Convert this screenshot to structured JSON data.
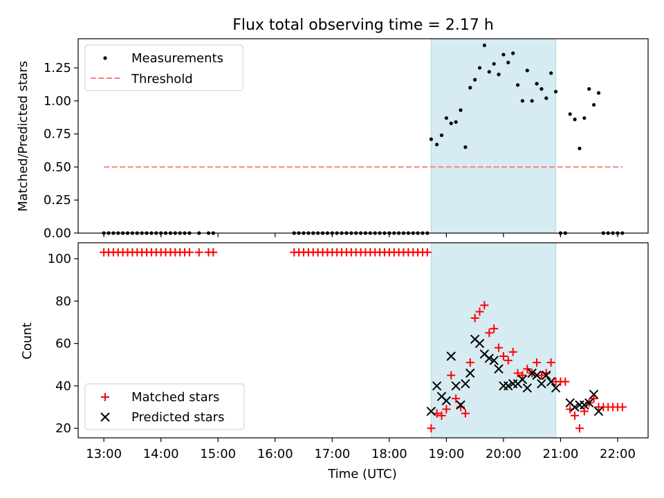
{
  "chart_data": [
    {
      "type": "scatter",
      "title": "Flux total observing time = 2.17 h",
      "xlabel": "",
      "ylabel": "Matched/Predicted stars",
      "xlim": [
        "12:33",
        "22:32"
      ],
      "ylim": [
        0,
        1.47
      ],
      "yticks": [
        0.0,
        0.25,
        0.5,
        0.75,
        1.0,
        1.25
      ],
      "ytick_labels": [
        "0.00",
        "0.25",
        "0.50",
        "0.75",
        "1.00",
        "1.25"
      ],
      "legend_position": "upper left",
      "highlight_span": {
        "start": "18:44",
        "end": "20:55",
        "color": "#add8e6"
      },
      "series": [
        {
          "name": "Measurements",
          "marker": "dot",
          "color": "#000000",
          "points": [
            [
              "13:00",
              0
            ],
            [
              "13:05",
              0
            ],
            [
              "13:10",
              0
            ],
            [
              "13:15",
              0
            ],
            [
              "13:20",
              0
            ],
            [
              "13:25",
              0
            ],
            [
              "13:30",
              0
            ],
            [
              "13:35",
              0
            ],
            [
              "13:40",
              0
            ],
            [
              "13:45",
              0
            ],
            [
              "13:50",
              0
            ],
            [
              "13:55",
              0
            ],
            [
              "14:00",
              0
            ],
            [
              "14:05",
              0
            ],
            [
              "14:10",
              0
            ],
            [
              "14:15",
              0
            ],
            [
              "14:20",
              0
            ],
            [
              "14:25",
              0
            ],
            [
              "14:30",
              0
            ],
            [
              "14:40",
              0
            ],
            [
              "14:50",
              0
            ],
            [
              "14:55",
              0
            ],
            [
              "16:20",
              0
            ],
            [
              "16:25",
              0
            ],
            [
              "16:30",
              0
            ],
            [
              "16:35",
              0
            ],
            [
              "16:40",
              0
            ],
            [
              "16:45",
              0
            ],
            [
              "16:50",
              0
            ],
            [
              "16:55",
              0
            ],
            [
              "17:00",
              0
            ],
            [
              "17:05",
              0
            ],
            [
              "17:10",
              0
            ],
            [
              "17:15",
              0
            ],
            [
              "17:20",
              0
            ],
            [
              "17:25",
              0
            ],
            [
              "17:30",
              0
            ],
            [
              "17:35",
              0
            ],
            [
              "17:40",
              0
            ],
            [
              "17:45",
              0
            ],
            [
              "17:50",
              0
            ],
            [
              "17:55",
              0
            ],
            [
              "18:00",
              0
            ],
            [
              "18:05",
              0
            ],
            [
              "18:10",
              0
            ],
            [
              "18:15",
              0
            ],
            [
              "18:20",
              0
            ],
            [
              "18:25",
              0
            ],
            [
              "18:30",
              0
            ],
            [
              "18:35",
              0
            ],
            [
              "18:40",
              0
            ],
            [
              "18:44",
              0.71
            ],
            [
              "18:50",
              0.67
            ],
            [
              "18:55",
              0.74
            ],
            [
              "19:00",
              0.87
            ],
            [
              "19:05",
              0.83
            ],
            [
              "19:10",
              0.84
            ],
            [
              "19:15",
              0.93
            ],
            [
              "19:20",
              0.65
            ],
            [
              "19:25",
              1.1
            ],
            [
              "19:30",
              1.16
            ],
            [
              "19:35",
              1.25
            ],
            [
              "19:40",
              1.42
            ],
            [
              "19:45",
              1.22
            ],
            [
              "19:50",
              1.28
            ],
            [
              "19:55",
              1.2
            ],
            [
              "20:00",
              1.35
            ],
            [
              "20:05",
              1.29
            ],
            [
              "20:10",
              1.36
            ],
            [
              "20:15",
              1.12
            ],
            [
              "20:20",
              1.0
            ],
            [
              "20:25",
              1.23
            ],
            [
              "20:30",
              1.0
            ],
            [
              "20:35",
              1.13
            ],
            [
              "20:40",
              1.09
            ],
            [
              "20:45",
              1.02
            ],
            [
              "20:50",
              1.21
            ],
            [
              "20:55",
              1.07
            ],
            [
              "21:00",
              0
            ],
            [
              "21:05",
              0
            ],
            [
              "21:10",
              0.9
            ],
            [
              "21:15",
              0.86
            ],
            [
              "21:20",
              0.64
            ],
            [
              "21:25",
              0.87
            ],
            [
              "21:30",
              1.09
            ],
            [
              "21:35",
              0.97
            ],
            [
              "21:40",
              1.06
            ],
            [
              "21:45",
              0
            ],
            [
              "21:50",
              0
            ],
            [
              "21:55",
              0
            ],
            [
              "22:00",
              0
            ],
            [
              "22:05",
              0
            ]
          ]
        },
        {
          "name": "Threshold",
          "style": "dashed line",
          "color": "#ff7f7f",
          "points": [
            [
              "13:00",
              0.5
            ],
            [
              "22:05",
              0.5
            ]
          ]
        }
      ]
    },
    {
      "type": "scatter",
      "title": "",
      "xlabel": "Time (UTC)",
      "ylabel": "Count",
      "xlim": [
        "12:33",
        "22:32"
      ],
      "ylim": [
        15.5,
        107.5
      ],
      "yticks": [
        20,
        40,
        60,
        80,
        100
      ],
      "ytick_labels": [
        "20",
        "40",
        "60",
        "80",
        "100"
      ],
      "xticks": [
        "13:00",
        "14:00",
        "15:00",
        "16:00",
        "17:00",
        "18:00",
        "19:00",
        "20:00",
        "21:00",
        "22:00"
      ],
      "xtick_labels": [
        "13:00",
        "14:00",
        "15:00",
        "16:00",
        "17:00",
        "18:00",
        "19:00",
        "20:00",
        "21:00",
        "22:00"
      ],
      "legend_position": "lower left",
      "highlight_span": {
        "start": "18:44",
        "end": "20:55",
        "color": "#add8e6"
      },
      "series": [
        {
          "name": "Matched stars",
          "marker": "plus",
          "color": "#ff0000",
          "points": [
            [
              "13:00",
              103
            ],
            [
              "13:05",
              103
            ],
            [
              "13:10",
              103
            ],
            [
              "13:15",
              103
            ],
            [
              "13:20",
              103
            ],
            [
              "13:25",
              103
            ],
            [
              "13:30",
              103
            ],
            [
              "13:35",
              103
            ],
            [
              "13:40",
              103
            ],
            [
              "13:45",
              103
            ],
            [
              "13:50",
              103
            ],
            [
              "13:55",
              103
            ],
            [
              "14:00",
              103
            ],
            [
              "14:05",
              103
            ],
            [
              "14:10",
              103
            ],
            [
              "14:15",
              103
            ],
            [
              "14:20",
              103
            ],
            [
              "14:25",
              103
            ],
            [
              "14:30",
              103
            ],
            [
              "14:40",
              103
            ],
            [
              "14:50",
              103
            ],
            [
              "14:55",
              103
            ],
            [
              "16:20",
              103
            ],
            [
              "16:25",
              103
            ],
            [
              "16:30",
              103
            ],
            [
              "16:35",
              103
            ],
            [
              "16:40",
              103
            ],
            [
              "16:45",
              103
            ],
            [
              "16:50",
              103
            ],
            [
              "16:55",
              103
            ],
            [
              "17:00",
              103
            ],
            [
              "17:05",
              103
            ],
            [
              "17:10",
              103
            ],
            [
              "17:15",
              103
            ],
            [
              "17:20",
              103
            ],
            [
              "17:25",
              103
            ],
            [
              "17:30",
              103
            ],
            [
              "17:35",
              103
            ],
            [
              "17:40",
              103
            ],
            [
              "17:45",
              103
            ],
            [
              "17:50",
              103
            ],
            [
              "17:55",
              103
            ],
            [
              "18:00",
              103
            ],
            [
              "18:05",
              103
            ],
            [
              "18:10",
              103
            ],
            [
              "18:15",
              103
            ],
            [
              "18:20",
              103
            ],
            [
              "18:25",
              103
            ],
            [
              "18:30",
              103
            ],
            [
              "18:35",
              103
            ],
            [
              "18:40",
              103
            ],
            [
              "18:44",
              20
            ],
            [
              "18:50",
              27
            ],
            [
              "18:55",
              26
            ],
            [
              "19:00",
              29
            ],
            [
              "19:05",
              45
            ],
            [
              "19:10",
              34
            ],
            [
              "19:15",
              30
            ],
            [
              "19:20",
              27
            ],
            [
              "19:25",
              51
            ],
            [
              "19:30",
              72
            ],
            [
              "19:35",
              75
            ],
            [
              "19:40",
              78
            ],
            [
              "19:45",
              65
            ],
            [
              "19:50",
              67
            ],
            [
              "19:55",
              58
            ],
            [
              "20:00",
              54
            ],
            [
              "20:05",
              52
            ],
            [
              "20:10",
              56
            ],
            [
              "20:15",
              46
            ],
            [
              "20:20",
              45
            ],
            [
              "20:25",
              48
            ],
            [
              "20:30",
              46
            ],
            [
              "20:35",
              51
            ],
            [
              "20:40",
              45
            ],
            [
              "20:45",
              46
            ],
            [
              "20:50",
              51
            ],
            [
              "20:55",
              42
            ],
            [
              "21:00",
              42
            ],
            [
              "21:05",
              42
            ],
            [
              "21:10",
              29
            ],
            [
              "21:15",
              26
            ],
            [
              "21:20",
              20
            ],
            [
              "21:25",
              28
            ],
            [
              "21:30",
              32
            ],
            [
              "21:35",
              34
            ],
            [
              "21:40",
              30
            ],
            [
              "21:45",
              30
            ],
            [
              "21:50",
              30
            ],
            [
              "21:55",
              30
            ],
            [
              "22:00",
              30
            ],
            [
              "22:05",
              30
            ]
          ]
        },
        {
          "name": "Predicted stars",
          "marker": "x",
          "color": "#000000",
          "points": [
            [
              "18:44",
              28
            ],
            [
              "18:50",
              40
            ],
            [
              "18:55",
              35
            ],
            [
              "19:00",
              33
            ],
            [
              "19:05",
              54
            ],
            [
              "19:10",
              40
            ],
            [
              "19:15",
              31
            ],
            [
              "19:20",
              41
            ],
            [
              "19:25",
              46
            ],
            [
              "19:30",
              62
            ],
            [
              "19:35",
              60
            ],
            [
              "19:40",
              55
            ],
            [
              "19:45",
              53
            ],
            [
              "19:50",
              52
            ],
            [
              "19:55",
              48
            ],
            [
              "20:00",
              40
            ],
            [
              "20:05",
              40
            ],
            [
              "20:10",
              41
            ],
            [
              "20:15",
              41
            ],
            [
              "20:20",
              43
            ],
            [
              "20:25",
              39
            ],
            [
              "20:30",
              46
            ],
            [
              "20:35",
              45
            ],
            [
              "20:40",
              41
            ],
            [
              "20:45",
              45
            ],
            [
              "20:50",
              42
            ],
            [
              "20:55",
              39
            ],
            [
              "21:10",
              32
            ],
            [
              "21:15",
              30
            ],
            [
              "21:20",
              31
            ],
            [
              "21:25",
              31
            ],
            [
              "21:30",
              32
            ],
            [
              "21:35",
              36
            ],
            [
              "21:40",
              28
            ]
          ]
        }
      ]
    }
  ]
}
